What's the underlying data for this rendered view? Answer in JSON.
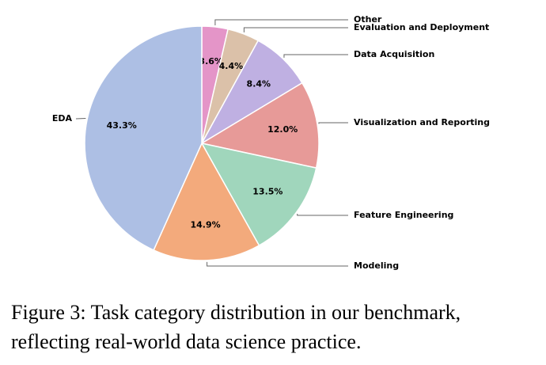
{
  "chart_data": {
    "type": "pie",
    "categories": [
      "Other",
      "Evaluation and Deployment",
      "Data Acquisition",
      "Visualization and Reporting",
      "Feature Engineering",
      "Modeling",
      "EDA"
    ],
    "values": [
      3.6,
      4.4,
      8.4,
      12.0,
      13.5,
      14.9,
      43.3
    ],
    "value_labels": [
      "3.6%",
      "4.4%",
      "8.4%",
      "12.0%",
      "13.5%",
      "14.9%",
      "43.3%"
    ],
    "colors": [
      "#e495c8",
      "#dbc1a9",
      "#bfb0e2",
      "#e79a98",
      "#a0d6bc",
      "#f3aa7c",
      "#adbfe4"
    ]
  },
  "caption": [
    "Figure 3: Task category distribution in our benchmark,",
    "reflecting real-world data science practice."
  ]
}
